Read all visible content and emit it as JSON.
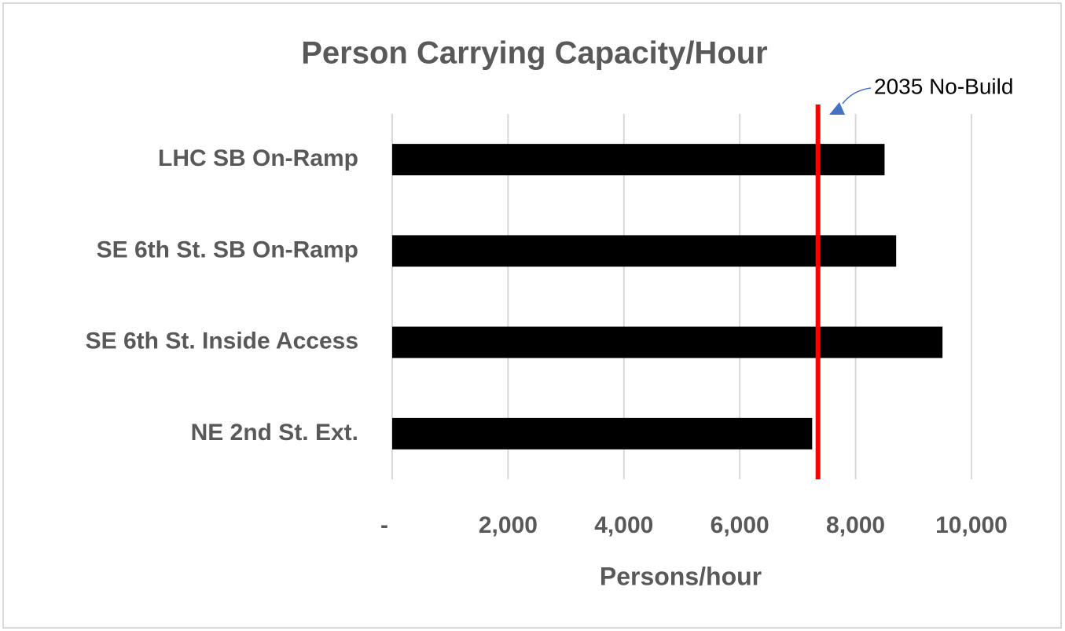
{
  "chart_data": {
    "type": "bar",
    "orientation": "horizontal",
    "title": "Person Carrying Capacity/Hour",
    "categories": [
      "LHC SB On-Ramp",
      "SE 6th St. SB On-Ramp",
      "SE 6th St. Inside Access",
      "NE 2nd St. Ext."
    ],
    "values": [
      8500,
      8700,
      9500,
      7250
    ],
    "color": "#000000",
    "xlabel": "Persons/hour",
    "xlim": [
      0,
      10000
    ],
    "xticks": [
      {
        "value": 0,
        "label": "-"
      },
      {
        "value": 2000,
        "label": "2,000"
      },
      {
        "value": 4000,
        "label": "4,000"
      },
      {
        "value": 6000,
        "label": "6,000"
      },
      {
        "value": 8000,
        "label": "8,000"
      },
      {
        "value": 10000,
        "label": "10,000"
      }
    ],
    "grid": true,
    "reference_line": {
      "value": 7350,
      "label": "2035 No-Build",
      "color": "#ff0000"
    }
  }
}
